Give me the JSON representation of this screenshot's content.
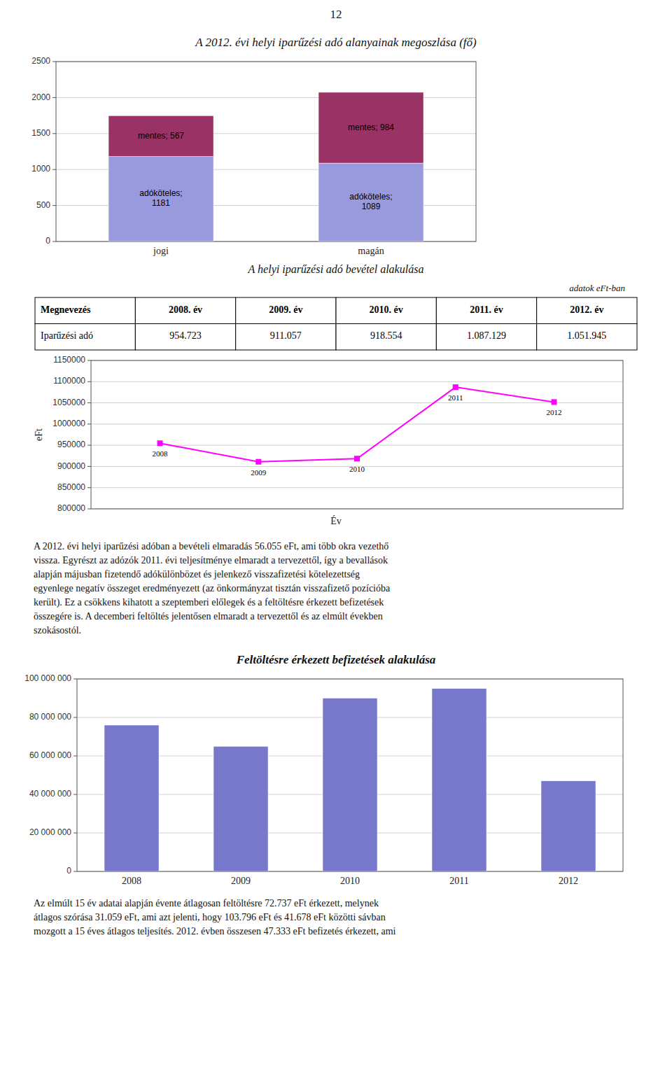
{
  "page_number": "12",
  "chart_data": [
    {
      "type": "bar",
      "stacked": true,
      "title": "A 2012. évi helyi iparűzési adó alanyainak megoszlása (fő)",
      "categories": [
        "jogi",
        "magán"
      ],
      "series": [
        {
          "name": "adóköteles",
          "color": "#9999dd",
          "values": [
            1181,
            1089
          ],
          "value_labels": [
            "adóköteles;\n1181",
            "adóköteles;\n1089"
          ]
        },
        {
          "name": "mentes",
          "color": "#993366",
          "values": [
            567,
            984
          ],
          "value_labels": [
            "mentes; 567",
            "mentes; 984"
          ]
        }
      ],
      "ylim": [
        0,
        2500
      ],
      "yticks": [
        0,
        500,
        1000,
        1500,
        2000,
        2500
      ],
      "grid": true,
      "data_labels": true
    },
    {
      "type": "line",
      "x": [
        2008,
        2009,
        2010,
        2011,
        2012
      ],
      "values": [
        954723,
        911057,
        918554,
        1087129,
        1051945
      ],
      "color": "#ff00ff",
      "marker": "square",
      "xlim": [
        2007.3,
        2012.7
      ],
      "ylim": [
        800000,
        1150000
      ],
      "yticks": [
        800000,
        850000,
        900000,
        950000,
        1000000,
        1050000,
        1100000,
        1150000
      ],
      "ylabel": "eFt",
      "xlabel": "Év",
      "grid": true,
      "tick_labels": "y"
    },
    {
      "type": "bar",
      "title": "Feltöltésre érkezett befizetések alakulása",
      "categories": [
        "2008",
        "2009",
        "2010",
        "2011",
        "2012"
      ],
      "values": [
        76000000,
        65000000,
        90000000,
        95000000,
        47000000
      ],
      "color": "#7777cc",
      "ylim": [
        0,
        100000000
      ],
      "yticks": [
        0,
        {
          "value": 20000000,
          "label": "20 000 000"
        },
        {
          "value": 40000000,
          "label": "40 000 000"
        },
        {
          "value": 60000000,
          "label": "60 000 000"
        },
        {
          "value": 80000000,
          "label": "80 000 000"
        },
        {
          "value": 100000000,
          "label": "100 000 000"
        }
      ],
      "grid": true
    }
  ],
  "table": {
    "title": "A helyi iparűzési adó bevétel alakulása",
    "subtitle": "adatok eFt-ban",
    "columns": [
      "Megnevezés",
      "2008. év",
      "2009. év",
      "2010. év",
      "2011. év",
      "2012. év"
    ],
    "rows": [
      [
        "Iparűzési adó",
        "954.723",
        "911.057",
        "918.554",
        "1.087.129",
        "1.051.945"
      ]
    ]
  },
  "paragraph": [
    "A 2012. évi helyi iparűzési adóban a bevételi elmaradás 56.055 eFt, ami több okra vezethő",
    "vissza. Egyrészt az adózók 2011. évi teljesítménye elmaradt a tervezettől, így a bevallások",
    "alapján májusban fizetendő adókülönbözet és jelenkező visszafizetési kötelezettség",
    "egyenlege negatív összeget eredményezett (az önkormányzat tisztán visszafizető pozícióba",
    "került). Ez a csökkens kihatott a szeptemberi előlegek és a feltöltésre érkezett befizetések",
    "összegére is. A decemberi feltöltés jelentősen elmaradt a tervezettől és az elmúlt években",
    "szokásostól."
  ],
  "bottom_text": [
    "Az elmúlt 15 év adatai alapján évente átlagosan feltöltésre 72.737 eFt érkezett,  melynek",
    "átlagos szórása 31.059 eFt, ami azt jelenti, hogy 103.796 eFt és 41.678 eFt közötti sávban",
    "mozgott a 15 éves átlagos teljesítés. 2012. évben összesen 47.333 eFt befizetés érkezett, ami"
  ]
}
